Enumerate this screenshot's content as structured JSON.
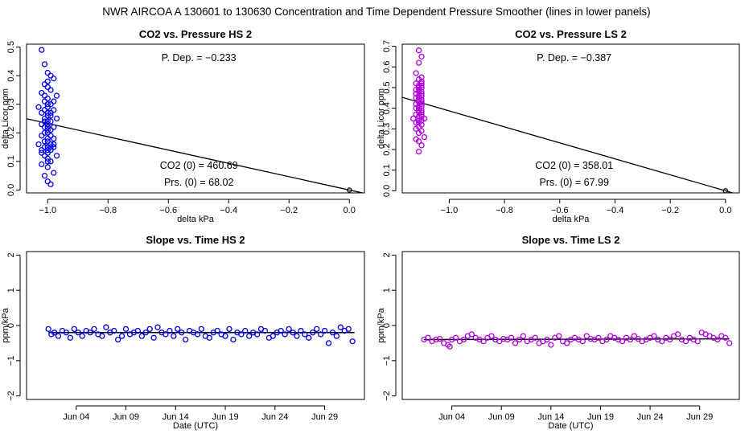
{
  "page_title": "NWR   AIRCOA A   130601 to 130630   Concentration and Time Dependent Pressure Smoother (lines in lower panels)",
  "colors": {
    "hs": "#0000ee",
    "ls": "#b000dd",
    "axis": "#000000",
    "fit": "#000000"
  },
  "chart_data": [
    {
      "id": "p1",
      "type": "scatter",
      "title": "CO2 vs. Pressure HS 2",
      "xlabel": "delta kPa",
      "ylabel": "delta Licor ppm",
      "xlim": [
        -1.07,
        0.05
      ],
      "ylim": [
        -0.01,
        0.51
      ],
      "xticks": [
        -1.0,
        -0.8,
        -0.6,
        -0.4,
        -0.2,
        0.0
      ],
      "xtick_labels": [
        "−1.0",
        "−0.8",
        "−0.6",
        "−0.4",
        "−0.2",
        "0.0"
      ],
      "yticks": [
        0.0,
        0.1,
        0.2,
        0.3,
        0.4,
        0.5
      ],
      "ytick_labels": [
        "0.0",
        "0.1",
        "0.2",
        "0.3",
        "0.4",
        "0.5"
      ],
      "color_key": "hs",
      "annotations": {
        "pdep": "P. Dep. =  −0.233",
        "co2": "CO2 (0) =  460.69",
        "prs": "Prs. (0) =  68.02"
      },
      "fit": {
        "slope": -0.233,
        "intercept": 0.0
      },
      "points": {
        "x": [
          -1.02,
          -1.01,
          -1.0,
          -0.99,
          -0.98,
          -1.0,
          -1.01,
          -0.99,
          -1.02,
          -0.97,
          -1.0,
          -1.01,
          -0.98,
          -1.0,
          -0.99,
          -1.03,
          -1.0,
          -1.01,
          -0.98,
          -1.0,
          -1.02,
          -0.99,
          -1.0,
          -1.01,
          -0.97,
          -1.0,
          -0.99,
          -1.02,
          -1.0,
          -1.01,
          -0.98,
          -1.0,
          -0.99,
          -1.01,
          -1.0,
          -1.02,
          -0.99,
          -1.0,
          -0.98,
          -1.01,
          -1.0,
          -0.99,
          -1.03,
          -1.0,
          -1.01,
          -0.98,
          -1.0,
          -0.99,
          -1.02,
          -1.0,
          -0.97,
          -1.01,
          -1.0,
          -0.99,
          -1.02,
          -1.0,
          -0.98,
          -1.01,
          -1.0,
          -0.99,
          -1.0,
          -1.01,
          -0.99,
          -1.0,
          -0.98,
          -1.02,
          -1.0,
          -0.99,
          -1.01,
          -1.0
        ],
        "y": [
          0.49,
          0.44,
          0.41,
          0.4,
          0.39,
          0.38,
          0.37,
          0.35,
          0.34,
          0.33,
          0.32,
          0.31,
          0.31,
          0.3,
          0.3,
          0.29,
          0.29,
          0.28,
          0.28,
          0.27,
          0.27,
          0.26,
          0.26,
          0.25,
          0.25,
          0.24,
          0.24,
          0.23,
          0.23,
          0.22,
          0.22,
          0.21,
          0.21,
          0.2,
          0.2,
          0.19,
          0.19,
          0.18,
          0.18,
          0.17,
          0.17,
          0.16,
          0.16,
          0.15,
          0.15,
          0.15,
          0.14,
          0.14,
          0.13,
          0.13,
          0.12,
          0.12,
          0.11,
          0.1,
          0.09,
          0.08,
          0.06,
          0.05,
          0.03,
          0.02,
          0.36,
          0.33,
          0.27,
          0.22,
          0.16,
          0.14,
          0.1,
          0.15,
          0.24,
          0.29
        ]
      }
    },
    {
      "id": "p2",
      "type": "scatter",
      "title": "CO2 vs. Pressure LS 2",
      "xlabel": "delta kPa",
      "ylabel": "delta Licor ppm",
      "xlim": [
        -1.17,
        0.05
      ],
      "ylim": [
        -0.01,
        0.71
      ],
      "xticks": [
        -1.0,
        -0.8,
        -0.6,
        -0.4,
        -0.2,
        0.0
      ],
      "xtick_labels": [
        "−1.0",
        "−0.8",
        "−0.6",
        "−0.4",
        "−0.2",
        "0.0"
      ],
      "yticks": [
        0.0,
        0.1,
        0.2,
        0.3,
        0.4,
        0.5,
        0.6,
        0.7
      ],
      "ytick_labels": [
        "0.0",
        "0.1",
        "0.2",
        "0.3",
        "0.4",
        "0.5",
        "0.6",
        "0.7"
      ],
      "color_key": "ls",
      "annotations": {
        "pdep": "P. Dep. =  −0.387",
        "co2": "CO2 (0) =  358.01",
        "prs": "Prs. (0) =  67.99"
      },
      "fit": {
        "slope": -0.387,
        "intercept": 0.0
      },
      "points": {
        "x": [
          -1.11,
          -1.1,
          -1.11,
          -1.12,
          -1.1,
          -1.11,
          -1.1,
          -1.12,
          -1.11,
          -1.1,
          -1.11,
          -1.1,
          -1.12,
          -1.11,
          -1.1,
          -1.11,
          -1.12,
          -1.1,
          -1.11,
          -1.1,
          -1.11,
          -1.12,
          -1.1,
          -1.11,
          -1.1,
          -1.11,
          -1.12,
          -1.1,
          -1.11,
          -1.1,
          -1.11,
          -1.12,
          -1.1,
          -1.11,
          -1.1,
          -1.11,
          -1.1,
          -1.12,
          -1.11,
          -1.1,
          -1.09,
          -1.13,
          -1.11,
          -1.1,
          -1.12,
          -1.11,
          -1.1,
          -1.11,
          -1.12,
          -1.1,
          -1.11,
          -1.09,
          -1.12,
          -1.11,
          -1.1,
          -1.11,
          -1.12,
          -1.1,
          -1.11,
          -1.1
        ],
        "y": [
          0.68,
          0.65,
          0.62,
          0.57,
          0.55,
          0.54,
          0.53,
          0.52,
          0.51,
          0.51,
          0.5,
          0.5,
          0.49,
          0.49,
          0.48,
          0.48,
          0.47,
          0.47,
          0.46,
          0.46,
          0.45,
          0.45,
          0.44,
          0.44,
          0.43,
          0.43,
          0.42,
          0.42,
          0.41,
          0.41,
          0.4,
          0.4,
          0.39,
          0.39,
          0.38,
          0.38,
          0.37,
          0.37,
          0.36,
          0.36,
          0.35,
          0.35,
          0.34,
          0.34,
          0.33,
          0.33,
          0.32,
          0.31,
          0.3,
          0.29,
          0.28,
          0.26,
          0.25,
          0.24,
          0.22,
          0.19,
          0.47,
          0.43,
          0.39,
          0.52
        ]
      }
    },
    {
      "id": "p3",
      "type": "scatter",
      "title": "Slope vs. Time HS 2",
      "xlabel": "Date (UTC)",
      "ylabel": "ppm/kPa",
      "xlim": [
        -2,
        32
      ],
      "ylim": [
        -2.1,
        2.1
      ],
      "xticks": [
        3,
        8,
        13,
        18,
        23,
        28
      ],
      "xtick_labels": [
        "Jun 04",
        "Jun 09",
        "Jun 14",
        "Jun 19",
        "Jun 24",
        "Jun 29"
      ],
      "yticks": [
        -2,
        -1,
        0,
        1,
        2
      ],
      "ytick_labels": [
        "−2",
        "−1",
        "0",
        "1",
        "2"
      ],
      "color_key": "hs",
      "smoother": {
        "x": [
          0.2,
          31.0
        ],
        "y": [
          -0.2,
          -0.2
        ]
      },
      "points": {
        "x": [
          0.2,
          0.5,
          0.8,
          1.2,
          1.6,
          2.0,
          2.4,
          2.8,
          3.2,
          3.6,
          4.0,
          4.4,
          4.8,
          5.2,
          5.6,
          6.0,
          6.4,
          6.8,
          7.2,
          7.6,
          8.0,
          8.4,
          8.8,
          9.2,
          9.6,
          10.0,
          10.4,
          10.8,
          11.2,
          11.6,
          12.0,
          12.4,
          12.8,
          13.2,
          13.6,
          14.0,
          14.4,
          14.8,
          15.2,
          15.6,
          16.0,
          16.4,
          16.8,
          17.2,
          17.6,
          18.0,
          18.4,
          18.8,
          19.2,
          19.6,
          20.0,
          20.4,
          20.8,
          21.2,
          21.6,
          22.0,
          22.4,
          22.8,
          23.2,
          23.6,
          24.0,
          24.4,
          24.8,
          25.2,
          25.6,
          26.0,
          26.4,
          26.8,
          27.2,
          27.6,
          28.0,
          28.4,
          28.8,
          29.2,
          29.6,
          30.0,
          30.4,
          30.8
        ],
        "y": [
          -0.1,
          -0.25,
          -0.2,
          -0.3,
          -0.15,
          -0.2,
          -0.35,
          -0.1,
          -0.2,
          -0.3,
          -0.15,
          -0.2,
          -0.1,
          -0.25,
          -0.3,
          -0.05,
          -0.2,
          -0.15,
          -0.4,
          -0.3,
          -0.1,
          -0.25,
          -0.2,
          -0.15,
          -0.3,
          -0.2,
          -0.1,
          -0.35,
          -0.05,
          -0.2,
          -0.25,
          -0.15,
          -0.3,
          -0.1,
          -0.2,
          -0.4,
          -0.15,
          -0.2,
          -0.25,
          -0.1,
          -0.3,
          -0.35,
          -0.2,
          -0.15,
          -0.25,
          -0.3,
          -0.1,
          -0.4,
          -0.2,
          -0.25,
          -0.15,
          -0.3,
          -0.2,
          -0.25,
          -0.1,
          -0.15,
          -0.35,
          -0.3,
          -0.2,
          -0.15,
          -0.25,
          -0.1,
          -0.2,
          -0.3,
          -0.15,
          -0.25,
          -0.35,
          -0.2,
          -0.1,
          -0.25,
          -0.15,
          -0.5,
          -0.2,
          -0.3,
          -0.05,
          -0.15,
          -0.1,
          -0.45
        ]
      }
    },
    {
      "id": "p4",
      "type": "scatter",
      "title": "Slope vs. Time LS 2",
      "xlabel": "Date (UTC)",
      "ylabel": "ppm/kPa",
      "xlim": [
        -2,
        32
      ],
      "ylim": [
        -2.1,
        2.1
      ],
      "xticks": [
        3,
        8,
        13,
        18,
        23,
        28
      ],
      "xtick_labels": [
        "Jun 04",
        "Jun 09",
        "Jun 14",
        "Jun 19",
        "Jun 24",
        "Jun 29"
      ],
      "yticks": [
        -2,
        -1,
        0,
        1,
        2
      ],
      "ytick_labels": [
        "−2",
        "−1",
        "0",
        "1",
        "2"
      ],
      "color_key": "ls",
      "smoother": {
        "x": [
          0.2,
          31.0
        ],
        "y": [
          -0.4,
          -0.38
        ]
      },
      "points": {
        "x": [
          0.2,
          0.6,
          1.0,
          1.4,
          1.8,
          2.2,
          2.6,
          2.8,
          3.0,
          3.4,
          3.8,
          4.2,
          4.6,
          5.0,
          5.4,
          5.8,
          6.2,
          6.6,
          7.0,
          7.4,
          7.8,
          8.2,
          8.6,
          9.0,
          9.4,
          9.8,
          10.2,
          10.6,
          11.0,
          11.4,
          11.8,
          12.2,
          12.6,
          13.0,
          13.4,
          13.8,
          14.2,
          14.6,
          15.0,
          15.4,
          15.8,
          16.2,
          16.6,
          17.0,
          17.4,
          17.8,
          18.2,
          18.6,
          19.0,
          19.4,
          19.8,
          20.2,
          20.6,
          21.0,
          21.4,
          21.8,
          22.2,
          22.6,
          23.0,
          23.4,
          23.8,
          24.2,
          24.6,
          25.0,
          25.4,
          25.8,
          26.2,
          26.6,
          27.0,
          27.4,
          27.8,
          28.2,
          28.6,
          29.0,
          29.4,
          29.8,
          30.2,
          30.6,
          31.0
        ],
        "y": [
          -0.4,
          -0.35,
          -0.45,
          -0.4,
          -0.38,
          -0.5,
          -0.55,
          -0.6,
          -0.4,
          -0.35,
          -0.45,
          -0.4,
          -0.3,
          -0.25,
          -0.35,
          -0.4,
          -0.45,
          -0.35,
          -0.3,
          -0.4,
          -0.45,
          -0.38,
          -0.4,
          -0.35,
          -0.5,
          -0.4,
          -0.3,
          -0.45,
          -0.4,
          -0.35,
          -0.5,
          -0.45,
          -0.4,
          -0.55,
          -0.35,
          -0.3,
          -0.45,
          -0.5,
          -0.4,
          -0.35,
          -0.4,
          -0.45,
          -0.3,
          -0.38,
          -0.4,
          -0.35,
          -0.45,
          -0.4,
          -0.3,
          -0.35,
          -0.4,
          -0.45,
          -0.35,
          -0.4,
          -0.3,
          -0.38,
          -0.45,
          -0.4,
          -0.35,
          -0.3,
          -0.4,
          -0.45,
          -0.35,
          -0.4,
          -0.3,
          -0.25,
          -0.4,
          -0.45,
          -0.35,
          -0.4,
          -0.45,
          -0.2,
          -0.25,
          -0.3,
          -0.35,
          -0.4,
          -0.3,
          -0.35,
          -0.5
        ]
      }
    }
  ]
}
